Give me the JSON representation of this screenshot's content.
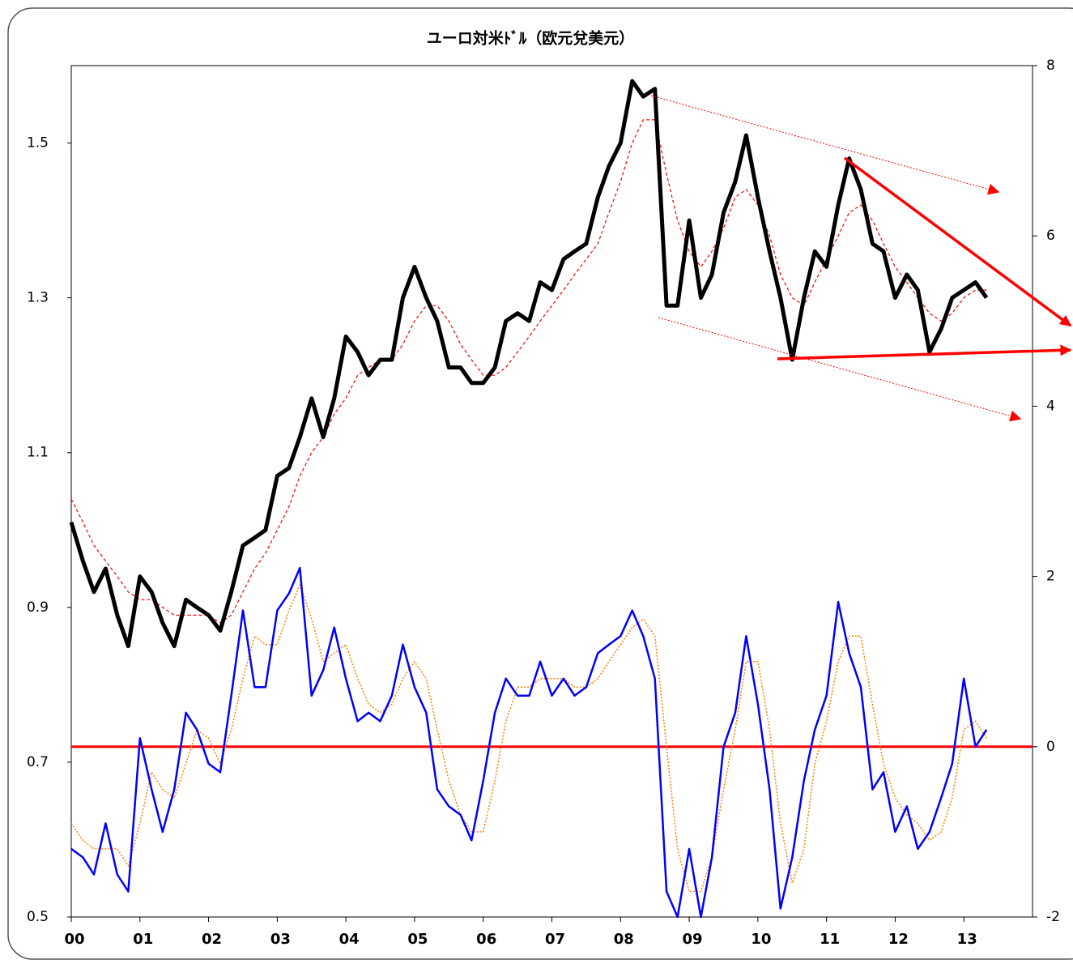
{
  "chart_data": {
    "type": "line",
    "title": "ユーロ対米ﾄﾞﾙ（欧元兌美元）",
    "x": [
      2000,
      2000.17,
      2000.33,
      2000.5,
      2000.67,
      2000.83,
      2001,
      2001.17,
      2001.33,
      2001.5,
      2001.67,
      2001.83,
      2002,
      2002.17,
      2002.33,
      2002.5,
      2002.67,
      2002.83,
      2003,
      2003.17,
      2003.33,
      2003.5,
      2003.67,
      2003.83,
      2004,
      2004.17,
      2004.33,
      2004.5,
      2004.67,
      2004.83,
      2005,
      2005.17,
      2005.33,
      2005.5,
      2005.67,
      2005.83,
      2006,
      2006.17,
      2006.33,
      2006.5,
      2006.67,
      2006.83,
      2007,
      2007.17,
      2007.33,
      2007.5,
      2007.67,
      2007.83,
      2008,
      2008.17,
      2008.33,
      2008.5,
      2008.67,
      2008.83,
      2009,
      2009.17,
      2009.33,
      2009.5,
      2009.67,
      2009.83,
      2010,
      2010.17,
      2010.33,
      2010.5,
      2010.67,
      2010.83,
      2011,
      2011.17,
      2011.33,
      2011.5,
      2011.67,
      2011.83,
      2012,
      2012.17,
      2012.33,
      2012.5,
      2012.67,
      2012.83,
      2013,
      2013.17,
      2013.33
    ],
    "series": [
      {
        "color": "#000000",
        "width": 5,
        "dash": "solid",
        "values": [
          1.01,
          0.96,
          0.92,
          0.95,
          0.89,
          0.85,
          0.94,
          0.92,
          0.88,
          0.85,
          0.91,
          0.9,
          0.89,
          0.87,
          0.92,
          0.98,
          0.99,
          1.0,
          1.07,
          1.08,
          1.12,
          1.17,
          1.12,
          1.17,
          1.25,
          1.23,
          1.2,
          1.22,
          1.22,
          1.3,
          1.34,
          1.3,
          1.27,
          1.21,
          1.21,
          1.19,
          1.19,
          1.21,
          1.27,
          1.28,
          1.27,
          1.32,
          1.31,
          1.35,
          1.36,
          1.37,
          1.43,
          1.47,
          1.5,
          1.58,
          1.56,
          1.57,
          1.29,
          1.29,
          1.4,
          1.3,
          1.33,
          1.41,
          1.45,
          1.51,
          1.43,
          1.36,
          1.3,
          1.22,
          1.3,
          1.36,
          1.34,
          1.42,
          1.48,
          1.44,
          1.37,
          1.36,
          1.3,
          1.33,
          1.31,
          1.23,
          1.26,
          1.3,
          1.31,
          1.32,
          1.3
        ]
      },
      {
        "color": "#ff0000",
        "width": 1.2,
        "dash": "dashed",
        "values": [
          1.04,
          1.01,
          0.98,
          0.96,
          0.94,
          0.92,
          0.91,
          0.91,
          0.9,
          0.89,
          0.89,
          0.89,
          0.89,
          0.88,
          0.89,
          0.92,
          0.95,
          0.97,
          1.0,
          1.03,
          1.07,
          1.1,
          1.12,
          1.15,
          1.17,
          1.2,
          1.21,
          1.22,
          1.22,
          1.24,
          1.27,
          1.29,
          1.29,
          1.27,
          1.24,
          1.22,
          1.2,
          1.2,
          1.21,
          1.23,
          1.25,
          1.27,
          1.29,
          1.31,
          1.33,
          1.35,
          1.37,
          1.41,
          1.45,
          1.5,
          1.53,
          1.53,
          1.46,
          1.4,
          1.36,
          1.34,
          1.36,
          1.39,
          1.43,
          1.44,
          1.42,
          1.38,
          1.33,
          1.3,
          1.29,
          1.32,
          1.35,
          1.38,
          1.41,
          1.42,
          1.4,
          1.37,
          1.34,
          1.32,
          1.3,
          1.28,
          1.27,
          1.28,
          1.3,
          1.31,
          1.31
        ]
      },
      {
        "color": "#0000ff",
        "width": 2.5,
        "dash": "solid",
        "axis": "y2",
        "values": [
          -1.2,
          -1.3,
          -1.5,
          -0.9,
          -1.5,
          -1.7,
          0.1,
          -0.5,
          -1.0,
          -0.5,
          0.4,
          0.2,
          -0.2,
          -0.3,
          0.6,
          1.6,
          0.7,
          0.7,
          1.6,
          1.8,
          2.1,
          0.6,
          0.9,
          1.4,
          0.8,
          0.3,
          0.4,
          0.3,
          0.6,
          1.2,
          0.7,
          0.4,
          -0.5,
          -0.7,
          -0.8,
          -1.1,
          -0.4,
          0.4,
          0.8,
          0.6,
          0.6,
          1.0,
          0.6,
          0.8,
          0.6,
          0.7,
          1.1,
          1.2,
          1.3,
          1.6,
          1.3,
          0.8,
          -1.7,
          -2.0,
          -1.2,
          -2.0,
          -1.3,
          0.0,
          0.4,
          1.3,
          0.5,
          -0.5,
          -1.9,
          -1.3,
          -0.4,
          0.2,
          0.6,
          1.7,
          1.1,
          0.7,
          -0.5,
          -0.3,
          -1.0,
          -0.7,
          -1.2,
          -1.0,
          -0.6,
          -0.2,
          0.8,
          0.0,
          0.2
        ]
      },
      {
        "color": "#ff8000",
        "width": 1.5,
        "dash": "dotted",
        "axis": "y2",
        "values": [
          -0.9,
          -1.1,
          -1.2,
          -1.2,
          -1.2,
          -1.4,
          -0.9,
          -0.3,
          -0.5,
          -0.6,
          -0.2,
          0.2,
          0.1,
          -0.2,
          0.2,
          0.8,
          1.3,
          1.2,
          1.2,
          1.6,
          1.9,
          1.5,
          1.0,
          1.1,
          1.2,
          0.8,
          0.5,
          0.4,
          0.5,
          0.8,
          1.0,
          0.8,
          0.2,
          -0.4,
          -0.8,
          -1.0,
          -1.0,
          -0.4,
          0.3,
          0.7,
          0.7,
          0.8,
          0.8,
          0.8,
          0.7,
          0.7,
          0.8,
          1.0,
          1.2,
          1.4,
          1.5,
          1.3,
          0.0,
          -1.2,
          -1.7,
          -1.7,
          -1.3,
          -0.5,
          0.2,
          1.0,
          1.0,
          0.2,
          -0.9,
          -1.6,
          -1.2,
          -0.2,
          0.3,
          1.0,
          1.3,
          1.3,
          0.5,
          -0.2,
          -0.6,
          -0.8,
          -0.9,
          -1.1,
          -1.0,
          -0.6,
          0.2,
          0.3,
          0.1
        ]
      }
    ],
    "reference_line": {
      "axis": "y2",
      "value": 0,
      "color": "#ff0000"
    },
    "xlim": [
      2000,
      2014
    ],
    "xticks": [
      {
        "value": 2000,
        "label": "00"
      },
      {
        "value": 2001,
        "label": "01"
      },
      {
        "value": 2002,
        "label": "02"
      },
      {
        "value": 2003,
        "label": "03"
      },
      {
        "value": 2004,
        "label": "04"
      },
      {
        "value": 2005,
        "label": "05"
      },
      {
        "value": 2006,
        "label": "06"
      },
      {
        "value": 2007,
        "label": "07"
      },
      {
        "value": 2008,
        "label": "08"
      },
      {
        "value": 2009,
        "label": "09"
      },
      {
        "value": 2010,
        "label": "10"
      },
      {
        "value": 2011,
        "label": "11"
      },
      {
        "value": 2012,
        "label": "12"
      },
      {
        "value": 2013,
        "label": "13"
      }
    ],
    "ylim": [
      0.5,
      1.6
    ],
    "yticks": [
      0.5,
      0.7,
      0.9,
      1.1,
      1.3,
      1.5
    ],
    "y2lim": [
      -2,
      8
    ],
    "y2ticks": [
      -2,
      0,
      2,
      4,
      6,
      8
    ]
  }
}
